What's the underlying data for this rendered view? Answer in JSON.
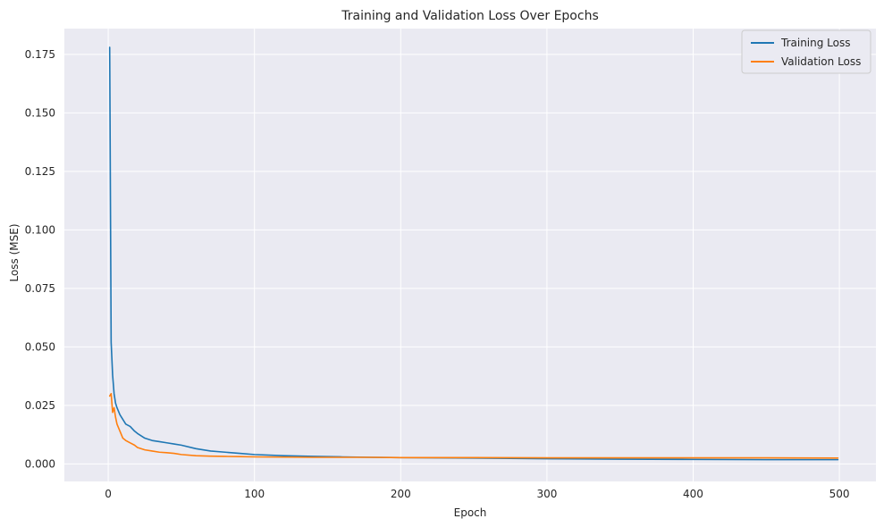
{
  "chart_data": {
    "type": "line",
    "title": "Training and Validation Loss Over Epochs",
    "xlabel": "Epoch",
    "ylabel": "Loss (MSE)",
    "xlim": [
      -30,
      525
    ],
    "ylim": [
      -0.0075,
      0.186
    ],
    "xticks": [
      0,
      100,
      200,
      300,
      400,
      500
    ],
    "yticks": [
      0.0,
      0.025,
      0.05,
      0.075,
      0.1,
      0.125,
      0.15,
      0.175
    ],
    "ytick_labels": [
      "0.000",
      "0.025",
      "0.050",
      "0.075",
      "0.100",
      "0.125",
      "0.150",
      "0.175"
    ],
    "grid": true,
    "legend_position": "top-right",
    "series": [
      {
        "name": "Training Loss",
        "color": "#1f77b4",
        "x": [
          1,
          2,
          3,
          4,
          5,
          6,
          8,
          10,
          12,
          15,
          18,
          20,
          25,
          30,
          35,
          40,
          45,
          50,
          60,
          70,
          80,
          90,
          100,
          120,
          140,
          160,
          180,
          200,
          250,
          300,
          350,
          400,
          450,
          499
        ],
        "values": [
          0.178,
          0.052,
          0.038,
          0.03,
          0.026,
          0.024,
          0.021,
          0.019,
          0.017,
          0.016,
          0.014,
          0.013,
          0.011,
          0.01,
          0.0095,
          0.009,
          0.0085,
          0.008,
          0.0065,
          0.0055,
          0.005,
          0.0045,
          0.004,
          0.0035,
          0.0032,
          0.003,
          0.0028,
          0.0027,
          0.0025,
          0.0022,
          0.002,
          0.0019,
          0.0018,
          0.0018
        ]
      },
      {
        "name": "Validation Loss",
        "color": "#ff7f0e",
        "x": [
          1,
          2,
          3,
          4,
          5,
          6,
          8,
          10,
          12,
          15,
          18,
          20,
          25,
          30,
          35,
          40,
          45,
          50,
          60,
          70,
          80,
          90,
          100,
          120,
          140,
          160,
          180,
          200,
          250,
          300,
          350,
          400,
          450,
          499
        ],
        "values": [
          0.029,
          0.03,
          0.022,
          0.024,
          0.02,
          0.017,
          0.014,
          0.011,
          0.01,
          0.009,
          0.008,
          0.007,
          0.006,
          0.0055,
          0.005,
          0.0048,
          0.0045,
          0.004,
          0.0035,
          0.0033,
          0.0032,
          0.0031,
          0.003,
          0.0029,
          0.0028,
          0.0028,
          0.0028,
          0.0027,
          0.0027,
          0.0026,
          0.0026,
          0.0026,
          0.0026,
          0.0025
        ]
      }
    ]
  }
}
